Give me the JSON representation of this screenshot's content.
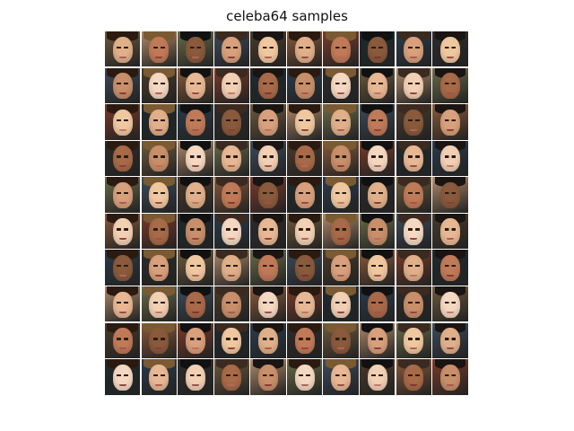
{
  "figure": {
    "title": "celeba64 samples"
  },
  "samples": {
    "rows": 10,
    "cols": 10,
    "background_colors": [
      "#6e5a3c",
      "#3d4a5a",
      "#7a3b2a",
      "#2e2a2a",
      "#6b6b4a",
      "#8a5a3a",
      "#2b3b4b",
      "#b08a6a",
      "#4a3a2a",
      "#1e2a2e"
    ],
    "skin_colors": [
      "#e0b08a",
      "#c88f6a",
      "#f0c8a0",
      "#a86a48",
      "#d8a07c",
      "#f2d0b4",
      "#8a5a3c",
      "#e8b894",
      "#c07a58",
      "#f4d8c2"
    ],
    "hair_colors": [
      "#2a1a10",
      "#4a2e1a",
      "#7a5a32",
      "#c8a060",
      "#111111",
      "#6a3a22",
      "#3a2a20",
      "#d8b880",
      "#1a1412",
      "#8a6a4a"
    ],
    "lip_colors": [
      "#a0504a",
      "#8a3a3a",
      "#b86a60",
      "#7a2e2e"
    ]
  }
}
